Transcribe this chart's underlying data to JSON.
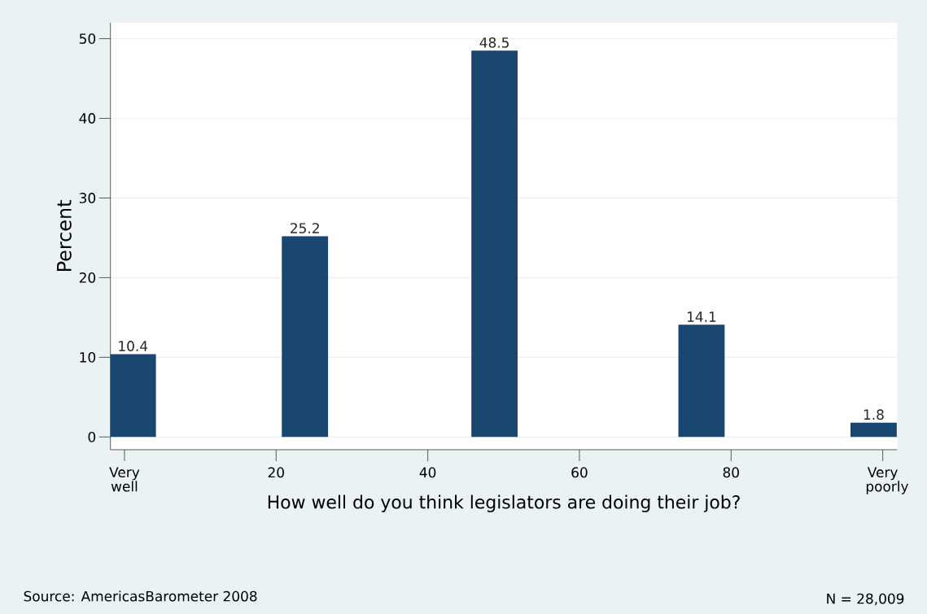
{
  "chart_data": {
    "type": "bar",
    "x": [
      1.1,
      23.8,
      48.8,
      76.1,
      98.8
    ],
    "values": [
      10.4,
      25.2,
      48.5,
      14.1,
      1.8
    ],
    "color": "#1a476f",
    "data_labels": true,
    "xlabel": "How well do you think legislators are doing their job?",
    "ylabel": "Percent",
    "xlim": [
      -1.85,
      101.9
    ],
    "ylim": [
      -1.6,
      52
    ],
    "xticks": [
      {
        "value": 0,
        "label": "Very well"
      },
      20,
      40,
      60,
      80,
      {
        "value": 100,
        "label": "Very poorly"
      }
    ],
    "yticks": [
      0,
      10,
      20,
      30,
      40,
      50
    ],
    "grid": "y",
    "annotations": [
      "Source: AmericasBarometer 2008",
      "N = 28,009"
    ]
  }
}
